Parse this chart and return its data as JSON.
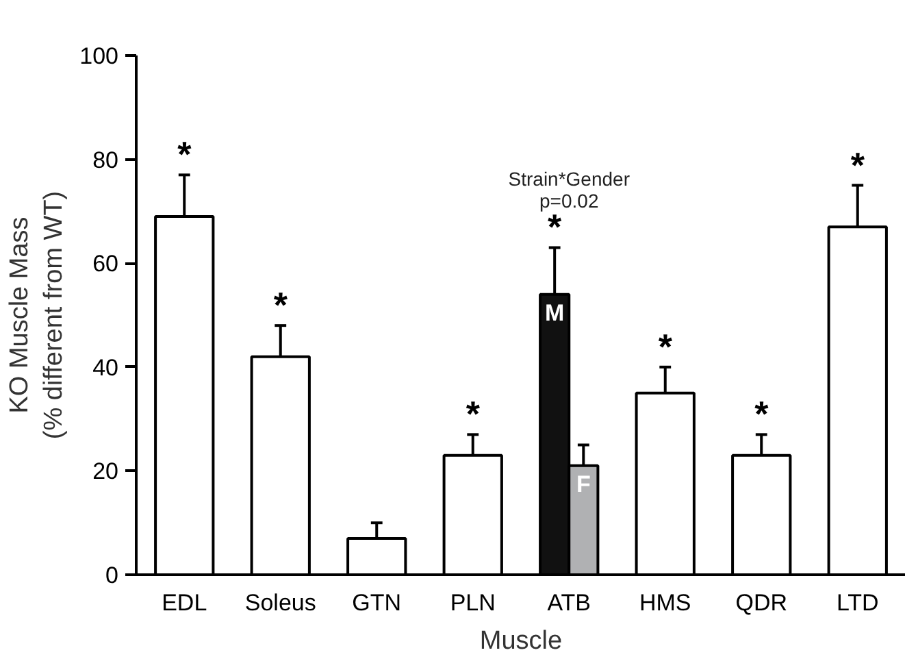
{
  "chart_data": {
    "type": "bar",
    "xlabel": "Muscle",
    "ylabel": "KO Muscle Mass\n(% different from WT)",
    "categories": [
      "EDL",
      "Soleus",
      "GTN",
      "PLN",
      "ATB",
      "HMS",
      "QDR",
      "LTD"
    ],
    "series": [
      {
        "color": "#ffffff",
        "values": [
          69,
          42,
          7,
          23,
          null,
          35,
          23,
          67
        ],
        "errors": [
          [
            69,
            77
          ],
          [
            42,
            48
          ],
          [
            7,
            10
          ],
          [
            23,
            27
          ],
          null,
          [
            35,
            40
          ],
          [
            23,
            27
          ],
          [
            67,
            75
          ]
        ],
        "value_labels": [
          "*",
          "*",
          null,
          "*",
          null,
          "*",
          "*",
          "*"
        ]
      },
      {
        "name": "M",
        "color": "#111111",
        "values": [
          null,
          null,
          null,
          null,
          54,
          null,
          null,
          null
        ],
        "errors": [
          null,
          null,
          null,
          null,
          [
            54,
            63
          ],
          null,
          null,
          null
        ],
        "value_labels": [
          null,
          null,
          null,
          null,
          "*",
          null,
          null,
          null
        ]
      },
      {
        "name": "F",
        "color": "#b0b1b3",
        "values": [
          null,
          null,
          null,
          null,
          21,
          null,
          null,
          null
        ],
        "errors": [
          null,
          null,
          null,
          null,
          [
            21,
            25
          ],
          null,
          null,
          null
        ]
      }
    ],
    "annotations": [
      "Strain*Gender",
      "p=0.02"
    ],
    "ylim": [
      0,
      100
    ],
    "yticks": [
      0,
      20,
      40,
      60,
      80,
      100
    ],
    "grid": false
  }
}
